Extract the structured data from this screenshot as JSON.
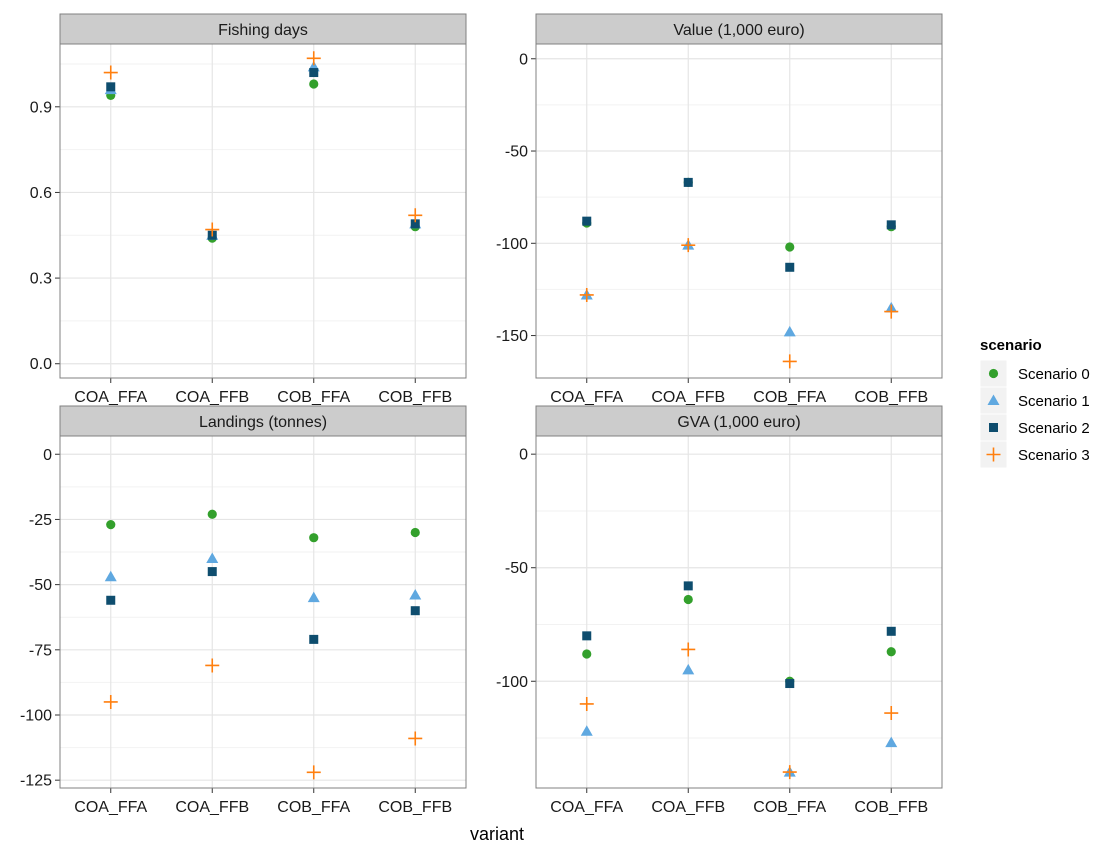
{
  "chart_data": {
    "type": "scatter",
    "xlabel": "variant",
    "ylabel": "",
    "categories": [
      "COA_FFA",
      "COA_FFB",
      "COB_FFA",
      "COB_FFB"
    ],
    "legend": {
      "title": "scenario",
      "position": "right",
      "entries": [
        {
          "name": "Scenario 0",
          "color": "#33a02c",
          "shape": "circle"
        },
        {
          "name": "Scenario 1",
          "color": "#5fa8e0",
          "shape": "triangle"
        },
        {
          "name": "Scenario 2",
          "color": "#0e4d6e",
          "shape": "square"
        },
        {
          "name": "Scenario 3",
          "color": "#ff7f0e",
          "shape": "plus"
        }
      ]
    },
    "grid": true,
    "panels": [
      {
        "title": "Fishing days",
        "ylim": [
          -0.05,
          1.12
        ],
        "yticks": [
          0.0,
          0.3,
          0.6,
          0.9
        ],
        "ytick_labels": [
          "0.0",
          "0.3",
          "0.6",
          "0.9"
        ],
        "series": [
          {
            "name": "Scenario 0",
            "values": [
              0.94,
              0.44,
              0.98,
              0.48
            ]
          },
          {
            "name": "Scenario 1",
            "values": [
              0.96,
              0.45,
              1.04,
              0.49
            ]
          },
          {
            "name": "Scenario 2",
            "values": [
              0.97,
              0.45,
              1.02,
              0.49
            ]
          },
          {
            "name": "Scenario 3",
            "values": [
              1.02,
              0.47,
              1.07,
              0.52
            ]
          }
        ]
      },
      {
        "title": "Value (1,000 euro)",
        "ylim": [
          -173,
          8
        ],
        "yticks": [
          -150,
          -100,
          -50,
          0
        ],
        "ytick_labels": [
          "-150",
          "-100",
          "-50",
          "0"
        ],
        "series": [
          {
            "name": "Scenario 0",
            "values": [
              -89,
              -67,
              -102,
              -91
            ]
          },
          {
            "name": "Scenario 1",
            "values": [
              -128,
              -101,
              -148,
              -135
            ]
          },
          {
            "name": "Scenario 2",
            "values": [
              -88,
              -67,
              -113,
              -90
            ]
          },
          {
            "name": "Scenario 3",
            "values": [
              -128,
              -101,
              -164,
              -137
            ]
          }
        ]
      },
      {
        "title": "Landings (tonnes)",
        "ylim": [
          -128,
          7
        ],
        "yticks": [
          -125,
          -100,
          -75,
          -50,
          -25,
          0
        ],
        "ytick_labels": [
          "-125",
          "-100",
          "-75",
          "-50",
          "-25",
          "0"
        ],
        "series": [
          {
            "name": "Scenario 0",
            "values": [
              -27,
              -23,
              -32,
              -30
            ]
          },
          {
            "name": "Scenario 1",
            "values": [
              -47,
              -40,
              -55,
              -54
            ]
          },
          {
            "name": "Scenario 2",
            "values": [
              -56,
              -45,
              -71,
              -60
            ]
          },
          {
            "name": "Scenario 3",
            "values": [
              -95,
              -81,
              -122,
              -109
            ]
          }
        ]
      },
      {
        "title": "GVA (1,000 euro)",
        "ylim": [
          -147,
          8
        ],
        "yticks": [
          -100,
          -50,
          0
        ],
        "ytick_labels": [
          "-100",
          "-50",
          "0"
        ],
        "series": [
          {
            "name": "Scenario 0",
            "values": [
              -88,
              -64,
              -100,
              -87
            ]
          },
          {
            "name": "Scenario 1",
            "values": [
              -122,
              -95,
              -140,
              -127
            ]
          },
          {
            "name": "Scenario 2",
            "values": [
              -80,
              -58,
              -101,
              -78
            ]
          },
          {
            "name": "Scenario 3",
            "values": [
              -110,
              -86,
              -140,
              -114
            ]
          }
        ]
      }
    ]
  }
}
